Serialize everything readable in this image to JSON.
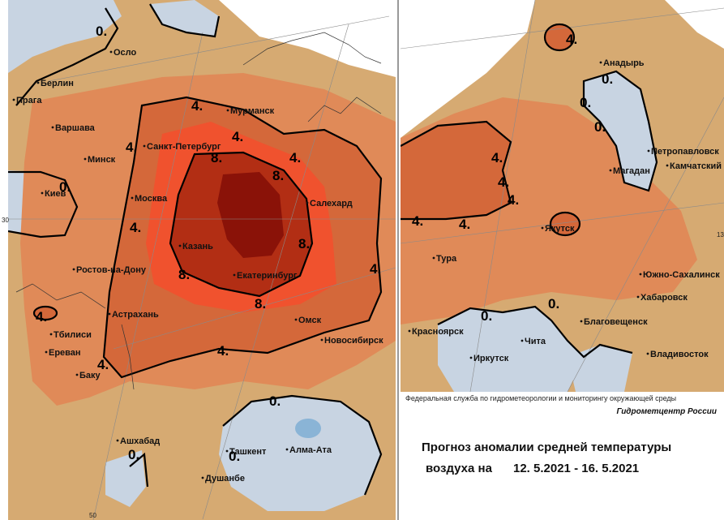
{
  "colors": {
    "tan": "#d6aa72",
    "light_orange": "#e08a58",
    "mid_orange": "#d4683a",
    "red_orange": "#f0522e",
    "dark_red": "#b22e14",
    "darkest": "#8a1208",
    "blue": "#c8d4e2",
    "deep_blue": "#8ab4d6",
    "white": "#ffffff",
    "isoline": "#000000"
  },
  "left_map": {
    "cities": [
      {
        "id": "oslo",
        "label": "Осло"
      },
      {
        "id": "berlin",
        "label": "Берлин"
      },
      {
        "id": "praha",
        "label": "Прага"
      },
      {
        "id": "warszawa",
        "label": "Варшава"
      },
      {
        "id": "minsk",
        "label": "Минск"
      },
      {
        "id": "kiev",
        "label": "Киев"
      },
      {
        "id": "murmansk",
        "label": "Мурманск"
      },
      {
        "id": "spb",
        "label": "Санкт-Петербург"
      },
      {
        "id": "moskva",
        "label": "Москва"
      },
      {
        "id": "salehard",
        "label": "Салехард"
      },
      {
        "id": "kazan",
        "label": "Казань"
      },
      {
        "id": "ekb",
        "label": "Екатеринбург"
      },
      {
        "id": "rostov",
        "label": "Ростов-на-Дону"
      },
      {
        "id": "astrahan",
        "label": "Астрахань"
      },
      {
        "id": "omsk",
        "label": "Омск"
      },
      {
        "id": "novosib",
        "label": "Новосибирск"
      },
      {
        "id": "tbilisi",
        "label": "Тбилиси"
      },
      {
        "id": "erevan",
        "label": "Ереван"
      },
      {
        "id": "baku",
        "label": "Баку"
      },
      {
        "id": "ashhabad",
        "label": "Ашхабад"
      },
      {
        "id": "tashkent",
        "label": "Ташкент"
      },
      {
        "id": "almaata",
        "label": "Алма-Ата"
      },
      {
        "id": "dushanbe",
        "label": "Душанбе"
      }
    ],
    "isolines": [
      "0.",
      "0.",
      "0.",
      "0.",
      "0.",
      "4.",
      "4.",
      "4.",
      "4.",
      "4.",
      "4.",
      "4.",
      "4.",
      "4.",
      "8.",
      "8.",
      "8.",
      "8.",
      "8."
    ],
    "ticks": [
      "30",
      "50"
    ]
  },
  "right_map": {
    "cities": [
      {
        "id": "anadyr",
        "label": "Анадырь"
      },
      {
        "id": "petropavlovsk",
        "label": "Петропавловск"
      },
      {
        "id": "kamchatsky",
        "label": "Камчатский"
      },
      {
        "id": "magadan",
        "label": "Магадан"
      },
      {
        "id": "yakutsk",
        "label": "Якутск"
      },
      {
        "id": "tura",
        "label": "Тура"
      },
      {
        "id": "yuzhno",
        "label": "Южно-Сахалинск"
      },
      {
        "id": "habarovsk",
        "label": "Хабаровск"
      },
      {
        "id": "blagoveshchensk",
        "label": "Благовещенск"
      },
      {
        "id": "vladivostok",
        "label": "Владивосток"
      },
      {
        "id": "krasnoyarsk",
        "label": "Красноярск"
      },
      {
        "id": "irkutsk",
        "label": "Иркутск"
      },
      {
        "id": "chita",
        "label": "Чита"
      }
    ],
    "isolines": [
      "4.",
      "4.",
      "4.",
      "4.",
      "4.",
      "4.",
      "0.",
      "0.",
      "0.",
      "0.",
      "0."
    ],
    "ticks": [
      "13"
    ]
  },
  "footer": {
    "organization": "Федеральная служба по гидрометеорологии и мониторингу окружающей среды",
    "brand": "Гидрометцентр России",
    "title_line1": "Прогноз аномалии средней температуры",
    "title_line2_prefix": "воздуха на",
    "date_range": "12. 5.2021 - 16. 5.2021"
  }
}
